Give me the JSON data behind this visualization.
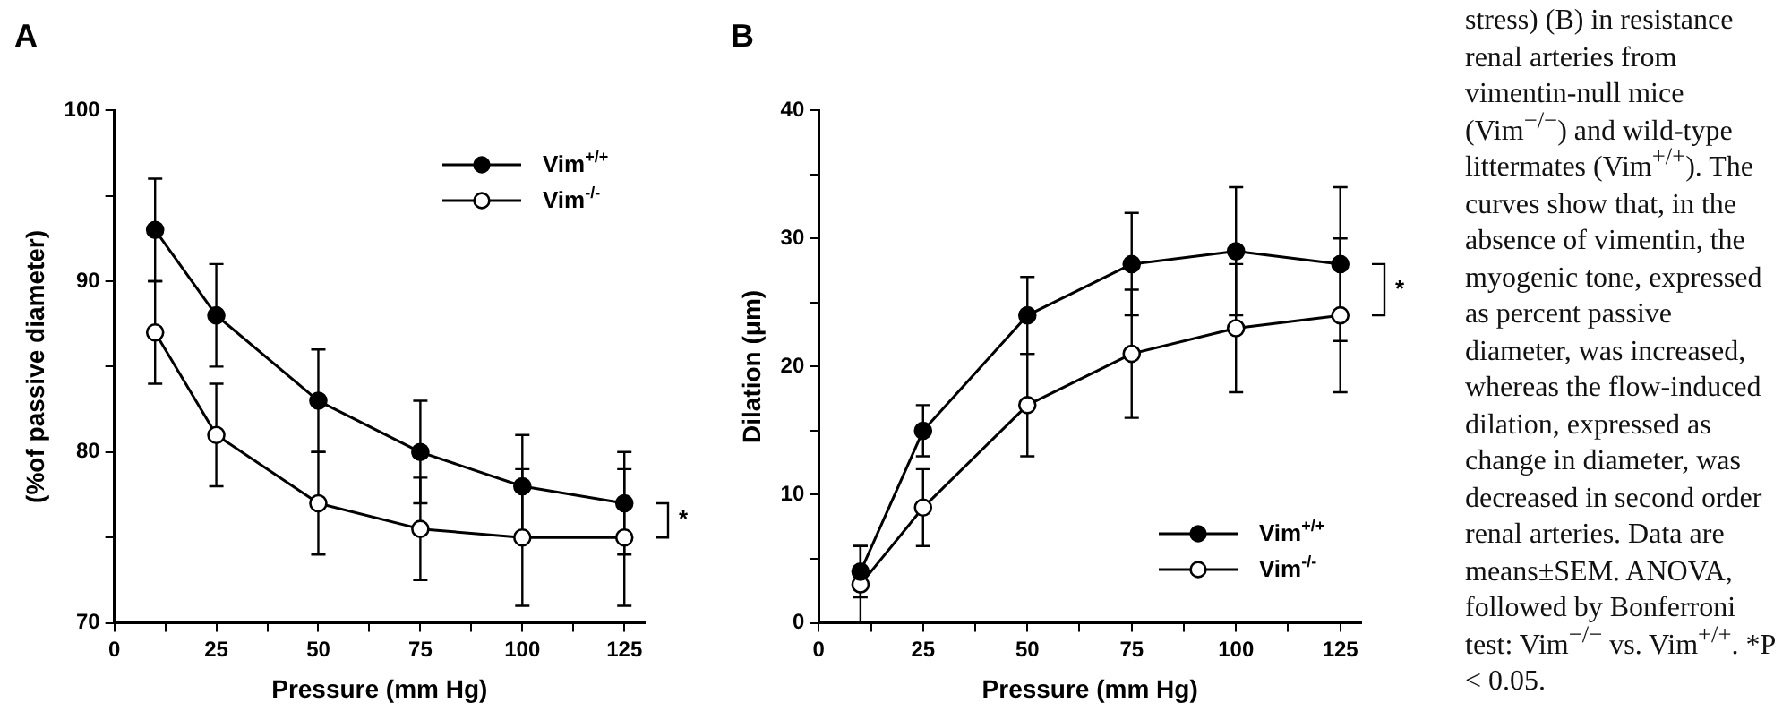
{
  "chart_data": [
    {
      "type": "line",
      "title": "A",
      "xlabel": "Pressure (mm Hg)",
      "ylabel": "(%of passive diameter)",
      "x": [
        10,
        25,
        50,
        75,
        100,
        125
      ],
      "series": [
        {
          "name": "Vim$^{+/+}$",
          "color": "#000000",
          "values": [
            93,
            88,
            83,
            80,
            78,
            77
          ],
          "errors": [
            3,
            3,
            3,
            3,
            3,
            3
          ]
        },
        {
          "name": "Vim$^{-/-}$",
          "color": "#000000",
          "values": [
            87,
            81,
            77,
            75.5,
            75,
            75
          ],
          "errors": [
            3,
            3,
            3,
            3,
            4,
            4
          ]
        }
      ],
      "xlim": [
        0,
        130
      ],
      "xticks": [
        0,
        {
          "value": 12.5,
          "label": null
        },
        25,
        {
          "value": 37.5,
          "label": null
        },
        50,
        {
          "value": 62.5,
          "label": null
        },
        75,
        {
          "value": 87.5,
          "label": null
        },
        100,
        {
          "value": 112.5,
          "label": null
        },
        125
      ],
      "ylim": [
        70,
        100
      ],
      "yticks": [
        70,
        {
          "value": 75,
          "label": null
        },
        80,
        {
          "value": 85,
          "label": null
        },
        90,
        {
          "value": 95,
          "label": null
        },
        100
      ],
      "grid": false,
      "legend": "top right",
      "marker": "circle",
      "line_style": "solid",
      "annotations": [
        "*"
      ]
    },
    {
      "type": "line",
      "title": "B",
      "xlabel": "Pressure (mm Hg)",
      "ylabel": "Dilation (μm)",
      "x": [
        10,
        25,
        50,
        75,
        100,
        125
      ],
      "series": [
        {
          "name": "Vim$^{+/+}$",
          "color": "#000000",
          "values": [
            4,
            15,
            24,
            28,
            29,
            28
          ],
          "errors": [
            2,
            2,
            3,
            4,
            5,
            6
          ]
        },
        {
          "name": "Vim$^{-/-}$",
          "color": "#000000",
          "values": [
            3,
            9,
            17,
            21,
            23,
            24
          ],
          "errors": [
            3,
            3,
            4,
            5,
            5,
            6
          ]
        }
      ],
      "xlim": [
        0,
        130
      ],
      "xticks": [
        0,
        {
          "value": 12.5,
          "label": null
        },
        25,
        {
          "value": 37.5,
          "label": null
        },
        50,
        {
          "value": 62.5,
          "label": null
        },
        75,
        {
          "value": 87.5,
          "label": null
        },
        100,
        {
          "value": 112.5,
          "label": null
        },
        125
      ],
      "ylim": [
        0,
        40
      ],
      "yticks": [
        0,
        {
          "value": 5,
          "label": null
        },
        10,
        {
          "value": 15,
          "label": null
        },
        20,
        {
          "value": 25,
          "label": null
        },
        30,
        {
          "value": 35,
          "label": null
        },
        40
      ],
      "grid": false,
      "legend": "bottom right",
      "marker": "circle",
      "line_style": "solid",
      "annotations": [
        "*"
      ]
    },
    {
      "type": "other",
      "annotations": [
        "stress) (B) in resistance renal arteries from vimentin-null mice (Vim$^{−/−}$) and wild-type littermates (Vim$^{+/+}$). The curves show that, in the absence of vimentin, the myogenic tone, expressed as percent passive diameter, was increased, whereas the flow-induced dilation, expressed as change in diameter, was decreased in second order renal arteries. Data are means±SEM. ANOVA, followed by Bonferroni test: Vim$^{−/−}$ vs. Vim$^{+/+}$. *P < 0.05."
      ]
    }
  ]
}
